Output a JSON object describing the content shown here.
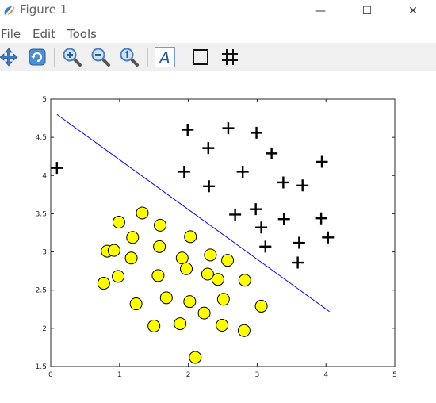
{
  "window": {
    "title": "Figure 1",
    "minimize_glyph": "—",
    "maximize_glyph": "☐",
    "close_glyph": "✕"
  },
  "menu": [
    "File",
    "Edit",
    "Tools"
  ],
  "toolbar": {
    "buttons": [
      "pan-icon",
      "rotate-icon",
      "zoom-in-icon",
      "zoom-out-icon",
      "zoom-reset-icon",
      "insert-text-icon",
      "insert-box-icon",
      "toggle-grid-icon"
    ],
    "text_tool_label": "A"
  },
  "chart_data": {
    "type": "scatter",
    "title": "",
    "xlabel": "",
    "ylabel": "",
    "xlim": [
      0,
      5
    ],
    "ylim": [
      1.5,
      5
    ],
    "xticks": [
      "0",
      "1",
      "2",
      "3",
      "4",
      "5"
    ],
    "yticks": [
      "1.5",
      "2",
      "2.5",
      "3",
      "3.5",
      "4",
      "4.5",
      "5"
    ],
    "grid": false,
    "series": [
      {
        "marker": "plus",
        "color": "#000000",
        "points": [
          [
            0.09,
            4.1
          ],
          [
            1.99,
            4.6
          ],
          [
            2.58,
            4.62
          ],
          [
            2.99,
            4.56
          ],
          [
            2.29,
            4.36
          ],
          [
            3.21,
            4.29
          ],
          [
            3.94,
            4.18
          ],
          [
            1.94,
            4.05
          ],
          [
            2.79,
            4.05
          ],
          [
            3.38,
            3.91
          ],
          [
            2.3,
            3.86
          ],
          [
            3.66,
            3.87
          ],
          [
            2.68,
            3.49
          ],
          [
            2.98,
            3.56
          ],
          [
            3.39,
            3.43
          ],
          [
            3.93,
            3.44
          ],
          [
            3.06,
            3.32
          ],
          [
            4.03,
            3.19
          ],
          [
            3.61,
            3.12
          ],
          [
            3.12,
            3.07
          ],
          [
            3.59,
            2.86
          ]
        ]
      },
      {
        "marker": "circle",
        "color": "#ffff00",
        "edge": "#000000",
        "points": [
          [
            1.33,
            3.51
          ],
          [
            0.99,
            3.39
          ],
          [
            1.59,
            3.35
          ],
          [
            1.19,
            3.19
          ],
          [
            2.03,
            3.2
          ],
          [
            1.58,
            3.07
          ],
          [
            0.82,
            3.01
          ],
          [
            0.92,
            3.02
          ],
          [
            2.32,
            2.96
          ],
          [
            1.17,
            2.92
          ],
          [
            1.91,
            2.92
          ],
          [
            2.57,
            2.89
          ],
          [
            1.97,
            2.78
          ],
          [
            0.98,
            2.68
          ],
          [
            1.56,
            2.69
          ],
          [
            2.28,
            2.71
          ],
          [
            2.43,
            2.64
          ],
          [
            2.82,
            2.63
          ],
          [
            0.77,
            2.59
          ],
          [
            1.68,
            2.4
          ],
          [
            2.02,
            2.35
          ],
          [
            2.51,
            2.38
          ],
          [
            1.24,
            2.32
          ],
          [
            3.06,
            2.29
          ],
          [
            2.23,
            2.2
          ],
          [
            1.88,
            2.06
          ],
          [
            2.49,
            2.04
          ],
          [
            1.5,
            2.03
          ],
          [
            2.81,
            1.97
          ],
          [
            2.1,
            1.62
          ]
        ]
      },
      {
        "marker": "line",
        "color": "#0000ff",
        "points": [
          [
            0.09,
            4.8
          ],
          [
            4.05,
            2.22
          ]
        ]
      }
    ]
  }
}
